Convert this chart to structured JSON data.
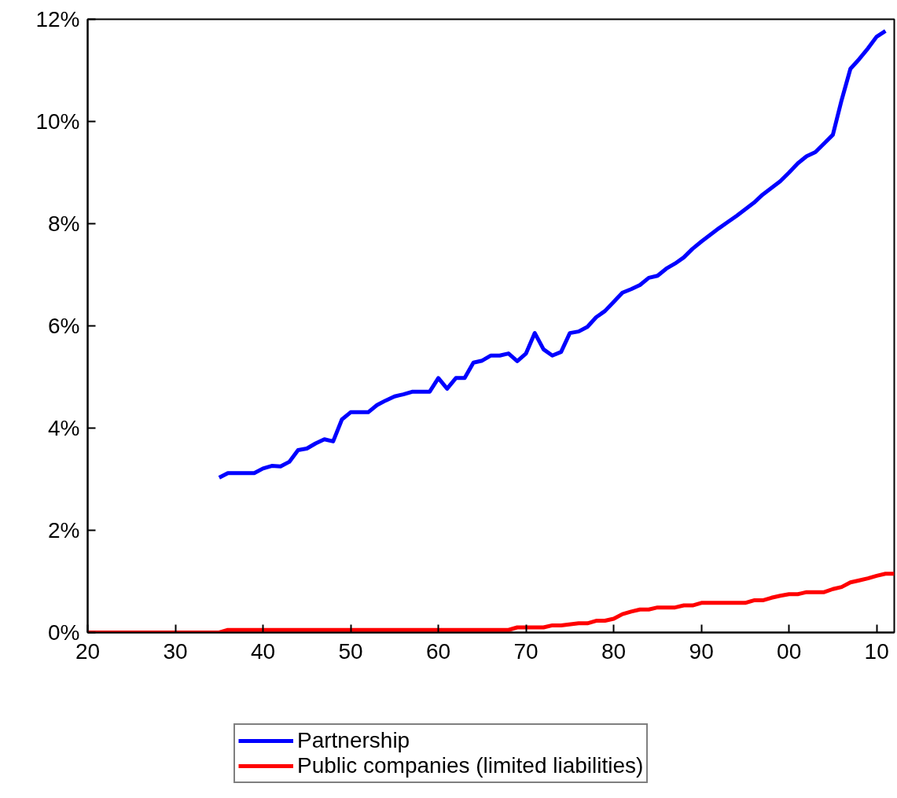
{
  "chart_data": {
    "type": "line",
    "xlim": [
      1920,
      2012
    ],
    "ylim": [
      0,
      12
    ],
    "xticks": [
      {
        "value": 1920,
        "label": "20"
      },
      {
        "value": 1930,
        "label": "30"
      },
      {
        "value": 1940,
        "label": "40"
      },
      {
        "value": 1950,
        "label": "50"
      },
      {
        "value": 1960,
        "label": "60"
      },
      {
        "value": 1970,
        "label": "70"
      },
      {
        "value": 1980,
        "label": "80"
      },
      {
        "value": 1990,
        "label": "90"
      },
      {
        "value": 2000,
        "label": "00"
      },
      {
        "value": 2010,
        "label": "10"
      }
    ],
    "yticks": [
      {
        "value": 0,
        "label": "0%"
      },
      {
        "value": 2,
        "label": "2%"
      },
      {
        "value": 4,
        "label": "4%"
      },
      {
        "value": 6,
        "label": "6%"
      },
      {
        "value": 8,
        "label": "8%"
      },
      {
        "value": 10,
        "label": "10%"
      },
      {
        "value": 12,
        "label": "12%"
      }
    ],
    "grid": false,
    "legend": "bottom",
    "marker": "none",
    "line_style": "solid",
    "series": [
      {
        "name": "Partnership",
        "color": "#0000ff",
        "x": [
          1935,
          1936,
          1939,
          1940,
          1941,
          1942,
          1943,
          1944,
          1945,
          1946,
          1947,
          1948,
          1949,
          1950,
          1952,
          1953,
          1954,
          1955,
          1956,
          1957,
          1959,
          1960,
          1961,
          1962,
          1963,
          1964,
          1965,
          1966,
          1967,
          1968,
          1969,
          1970,
          1971,
          1972,
          1973,
          1974,
          1975,
          1976,
          1977,
          1978,
          1979,
          1980,
          1981,
          1982,
          1983,
          1984,
          1985,
          1986,
          1987,
          1988,
          1989,
          1990,
          1991,
          1992,
          1993,
          1994,
          1995,
          1996,
          1997,
          1998,
          1999,
          2000,
          2001,
          2002,
          2003,
          2004,
          2005,
          2006,
          2007,
          2008,
          2009,
          2010,
          2011
        ],
        "values": [
          3.03,
          3.12,
          3.12,
          3.21,
          3.26,
          3.25,
          3.34,
          3.57,
          3.6,
          3.7,
          3.78,
          3.74,
          4.17,
          4.31,
          4.31,
          4.45,
          4.54,
          4.62,
          4.66,
          4.71,
          4.71,
          4.98,
          4.77,
          4.98,
          4.98,
          5.28,
          5.32,
          5.42,
          5.42,
          5.46,
          5.31,
          5.46,
          5.86,
          5.54,
          5.42,
          5.49,
          5.86,
          5.89,
          5.98,
          6.17,
          6.29,
          6.47,
          6.65,
          6.72,
          6.8,
          6.94,
          6.98,
          7.12,
          7.22,
          7.34,
          7.51,
          7.65,
          7.78,
          7.91,
          8.03,
          8.15,
          8.28,
          8.41,
          8.57,
          8.7,
          8.83,
          9.0,
          9.18,
          9.32,
          9.4,
          9.57,
          9.74,
          10.42,
          11.03,
          11.22,
          11.43,
          11.66,
          11.77
        ]
      },
      {
        "name": "Public companies (limited liabilities)",
        "color": "#ff0000",
        "x": [
          1920,
          1935,
          1936,
          1968,
          1969,
          1972,
          1973,
          1974,
          1976,
          1977,
          1978,
          1979,
          1980,
          1981,
          1982,
          1983,
          1984,
          1985,
          1987,
          1988,
          1989,
          1990,
          1995,
          1996,
          1997,
          1998,
          1999,
          2000,
          2001,
          2002,
          2004,
          2005,
          2006,
          2007,
          2008,
          2009,
          2010,
          2011,
          2012
        ],
        "values": [
          0,
          0,
          0.05,
          0.05,
          0.1,
          0.1,
          0.14,
          0.14,
          0.18,
          0.18,
          0.23,
          0.23,
          0.27,
          0.36,
          0.41,
          0.45,
          0.45,
          0.49,
          0.49,
          0.53,
          0.53,
          0.58,
          0.58,
          0.63,
          0.63,
          0.68,
          0.72,
          0.75,
          0.75,
          0.79,
          0.79,
          0.85,
          0.89,
          0.98,
          1.02,
          1.06,
          1.11,
          1.15,
          1.15
        ]
      }
    ]
  }
}
